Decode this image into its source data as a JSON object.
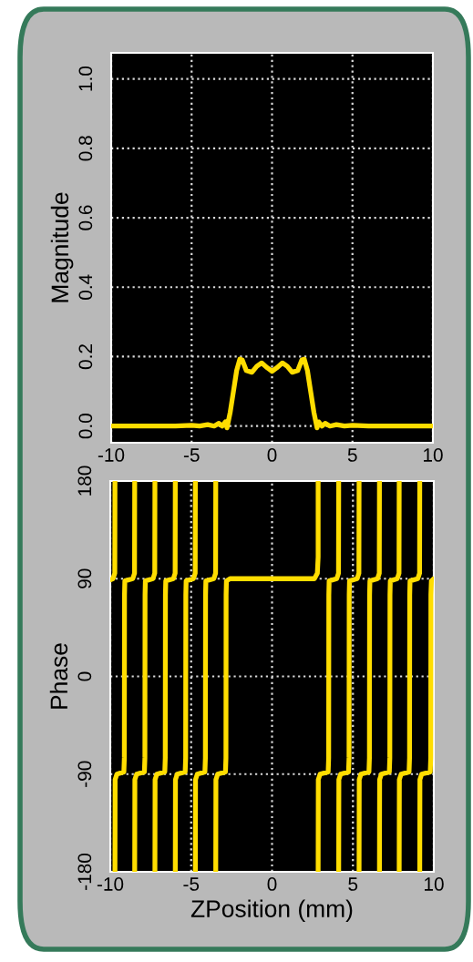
{
  "chart_data": [
    {
      "type": "line",
      "ylabel": "Magnitude",
      "xlim": [
        -10,
        10
      ],
      "xticks": [
        -10,
        -5,
        0,
        5,
        10
      ],
      "ylim": [
        -0.048,
        1.075
      ],
      "yticks": [
        {
          "value": 0,
          "label": "0.0"
        },
        0.2,
        0.4,
        0.6,
        0.8,
        {
          "value": 1,
          "label": "1.0"
        }
      ],
      "grid": true,
      "line_style": "solid",
      "series": [
        {
          "color": "#ffdd00",
          "x": [
            -10,
            -8,
            -6,
            -5,
            -4.5,
            -4,
            -3.6,
            -3.3,
            -3.1,
            -2.9,
            -2.8,
            -2.6,
            -2.4,
            -2.2,
            -2.0,
            -1.85,
            -1.6,
            -1.25,
            -0.95,
            -0.65,
            -0.3,
            0,
            0.3,
            0.65,
            0.95,
            1.25,
            1.6,
            1.85,
            2.0,
            2.2,
            2.4,
            2.6,
            2.8,
            2.9,
            3.1,
            3.3,
            3.6,
            4,
            4.5,
            5,
            6,
            8,
            10
          ],
          "values": [
            0,
            0,
            0,
            0.002,
            0,
            0.004,
            0,
            0.008,
            0,
            0.012,
            -0.005,
            0.04,
            0.1,
            0.16,
            0.193,
            0.19,
            0.16,
            0.155,
            0.172,
            0.182,
            0.168,
            0.158,
            0.168,
            0.182,
            0.172,
            0.155,
            0.16,
            0.19,
            0.193,
            0.16,
            0.1,
            0.04,
            -0.005,
            0.012,
            0,
            0.008,
            0,
            0.004,
            0,
            0.002,
            0,
            0,
            0
          ]
        }
      ]
    },
    {
      "type": "line",
      "xlabel": "ZPosition (mm)",
      "ylabel": "Phase",
      "xlim": [
        -10,
        10
      ],
      "xticks": [
        -10,
        -5,
        0,
        5,
        10
      ],
      "ylim": [
        -180,
        180
      ],
      "yticks": [
        -180,
        -90,
        0,
        90,
        180
      ],
      "grid": true,
      "line_style": "solid",
      "series": [
        {
          "color": "#ffdd00",
          "x": [
            -10,
            -9.83,
            -9.72,
            -9.71,
            null,
            -9.71,
            -9.7,
            -9.59,
            -9.16,
            -9.13,
            -9.12,
            -9.1,
            -8.61,
            -8.5,
            -8.49,
            null,
            -8.49,
            -8.48,
            -8.37,
            -7.89,
            -7.86,
            -7.85,
            -7.83,
            -7.36,
            -7.25,
            -7.24,
            null,
            -7.24,
            -7.23,
            -7.12,
            -6.63,
            -6.6,
            -6.59,
            -6.57,
            -6.1,
            -5.99,
            -5.98,
            null,
            -5.98,
            -5.97,
            -5.86,
            -5.37,
            -5.34,
            -5.33,
            -5.31,
            -4.86,
            -4.75,
            -4.74,
            null,
            -4.74,
            -4.73,
            -4.62,
            -4.15,
            -4.12,
            -4.11,
            -4.09,
            -3.6,
            -3.49,
            -3.48,
            null,
            -3.48,
            -3.47,
            -3.36,
            -2.88,
            -2.85,
            -2.84,
            -2.82,
            -2.6,
            2.62,
            2.8,
            2.85,
            2.85,
            null,
            2.85,
            2.86,
            2.97,
            3.47,
            3.5,
            3.51,
            3.53,
            4.0,
            4.11,
            4.12,
            null,
            4.12,
            4.13,
            4.24,
            4.73,
            4.76,
            4.77,
            4.79,
            5.26,
            5.37,
            5.38,
            null,
            5.38,
            5.39,
            5.5,
            5.99,
            6.02,
            6.03,
            6.05,
            6.52,
            6.63,
            6.64,
            null,
            6.64,
            6.65,
            6.76,
            7.25,
            7.28,
            7.29,
            7.31,
            7.74,
            7.85,
            7.86,
            null,
            7.86,
            7.87,
            7.98,
            8.47,
            8.5,
            8.51,
            8.53,
            9.01,
            9.12,
            9.13,
            null,
            9.13,
            9.14,
            9.25,
            9.78,
            9.81,
            9.82,
            9.85,
            10
          ],
          "values": [
            89,
            90,
            95,
            180,
            null,
            -180,
            -95,
            -90,
            -88,
            -75,
            75,
            88,
            90,
            95,
            180,
            null,
            -180,
            -95,
            -90,
            -88,
            -75,
            75,
            88,
            90,
            95,
            180,
            null,
            -180,
            -95,
            -90,
            -88,
            -75,
            75,
            88,
            90,
            95,
            180,
            null,
            -180,
            -95,
            -90,
            -88,
            -75,
            75,
            88,
            90,
            95,
            180,
            null,
            -180,
            -95,
            -90,
            -88,
            -75,
            75,
            88,
            90,
            95,
            180,
            null,
            -180,
            -95,
            -90,
            -88,
            -75,
            75,
            88,
            90,
            90,
            95,
            110,
            180,
            null,
            -180,
            -95,
            -90,
            -88,
            -75,
            75,
            88,
            90,
            95,
            180,
            null,
            -180,
            -95,
            -90,
            -88,
            -75,
            75,
            88,
            90,
            95,
            180,
            null,
            -180,
            -95,
            -90,
            -88,
            -75,
            75,
            88,
            90,
            95,
            180,
            null,
            -180,
            -95,
            -90,
            -88,
            -75,
            75,
            88,
            90,
            95,
            180,
            null,
            -180,
            -95,
            -90,
            -88,
            -75,
            75,
            88,
            90,
            95,
            180,
            null,
            -180,
            -95,
            -90,
            -88,
            -75,
            75,
            88,
            90
          ]
        }
      ]
    }
  ]
}
